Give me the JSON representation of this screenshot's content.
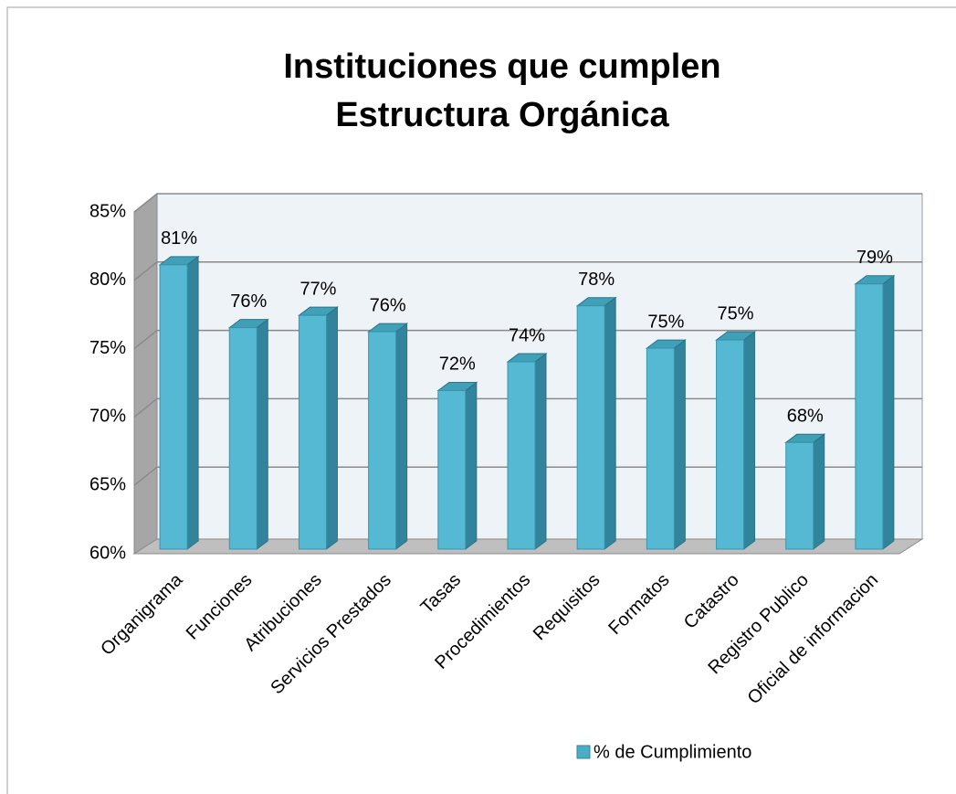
{
  "chart_data": {
    "type": "bar3d",
    "title": "Instituciones que cumplen",
    "subtitle": "Estructura Orgánica",
    "categories": [
      "Organigrama",
      "Funciones",
      "Atribuciones",
      "Servicios Prestados",
      "Tasas",
      "Procedimientos",
      "Requisitos",
      "Formatos",
      "Catastro",
      "Registro Publico",
      "Oficial de informacion"
    ],
    "series": [
      {
        "name": "% de Cumplimiento",
        "color": "#4bacc6",
        "values": [
          80.8,
          76.2,
          77.1,
          75.9,
          71.6,
          73.7,
          77.8,
          74.7,
          75.3,
          67.8,
          79.4
        ],
        "value_labels": [
          "81%",
          "76%",
          "77%",
          "76%",
          "72%",
          "74%",
          "78%",
          "75%",
          "75%",
          "68%",
          "79%"
        ]
      }
    ],
    "ylim": [
      60,
      85
    ],
    "yticks": [
      {
        "value": 60,
        "label": "60%"
      },
      {
        "value": 65,
        "label": "65%"
      },
      {
        "value": 70,
        "label": "70%"
      },
      {
        "value": 75,
        "label": "75%"
      },
      {
        "value": 80,
        "label": "80%"
      },
      {
        "value": 85,
        "label": "85%"
      }
    ],
    "grid": true
  }
}
